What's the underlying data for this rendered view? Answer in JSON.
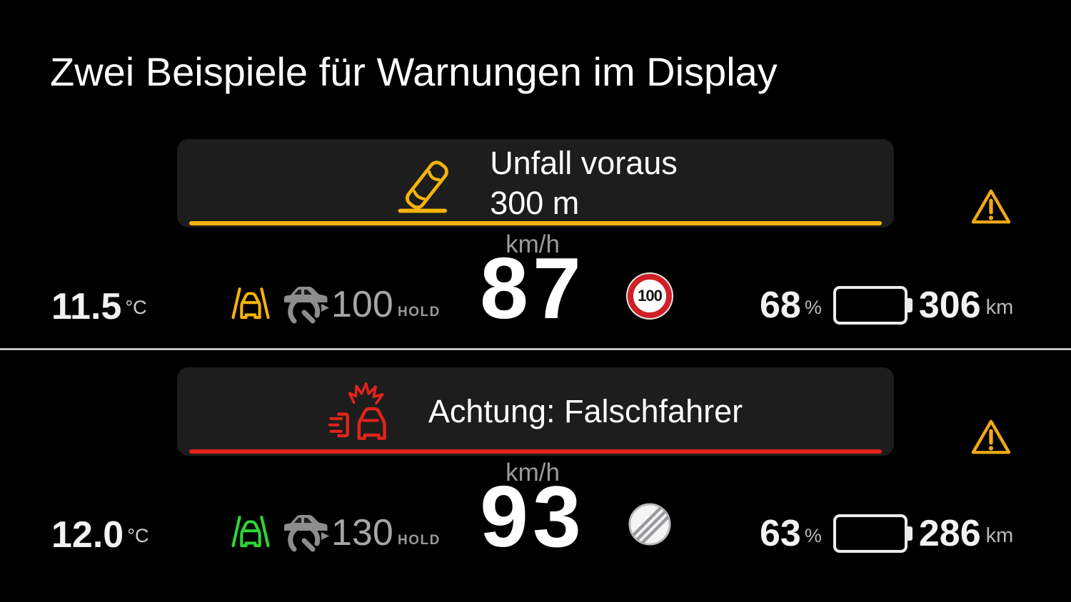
{
  "title": "Zwei Beispiele für Warnungen im Display",
  "colors": {
    "background": "#000000",
    "panel_bg": "#1d1d1d",
    "amber_accent": "#f6b40a",
    "red_accent": "#e2231a",
    "lane_green": "#2bd636",
    "battery_green": "#2ee239",
    "grey_text": "#9b9b9b",
    "divider": "#d9d9d9",
    "sign_ring_red": "#cf2027"
  },
  "panel1": {
    "warning_icon": "crashed-car-icon",
    "warning_title": "Unfall voraus",
    "warning_distance": "300 m",
    "speed_unit": "km/h",
    "speed": "87",
    "speed_limit": "100",
    "temperature": "11.5",
    "temperature_unit": "°C",
    "acc_set_speed": "100",
    "hold_label": "HOLD",
    "battery_percent": "68",
    "percent_unit": "%",
    "battery_level": 68,
    "range": "306",
    "range_unit": "km"
  },
  "panel2": {
    "warning_icon": "head-on-collision-icon",
    "warning_title": "Achtung: Falschfahrer",
    "warning_distance": "",
    "speed_unit": "km/h",
    "speed": "93",
    "speed_sign": "no-speed-limit-sign",
    "temperature": "12.0",
    "temperature_unit": "°C",
    "acc_set_speed": "130",
    "hold_label": "HOLD",
    "battery_percent": "63",
    "percent_unit": "%",
    "battery_level": 63,
    "range": "286",
    "range_unit": "km"
  }
}
